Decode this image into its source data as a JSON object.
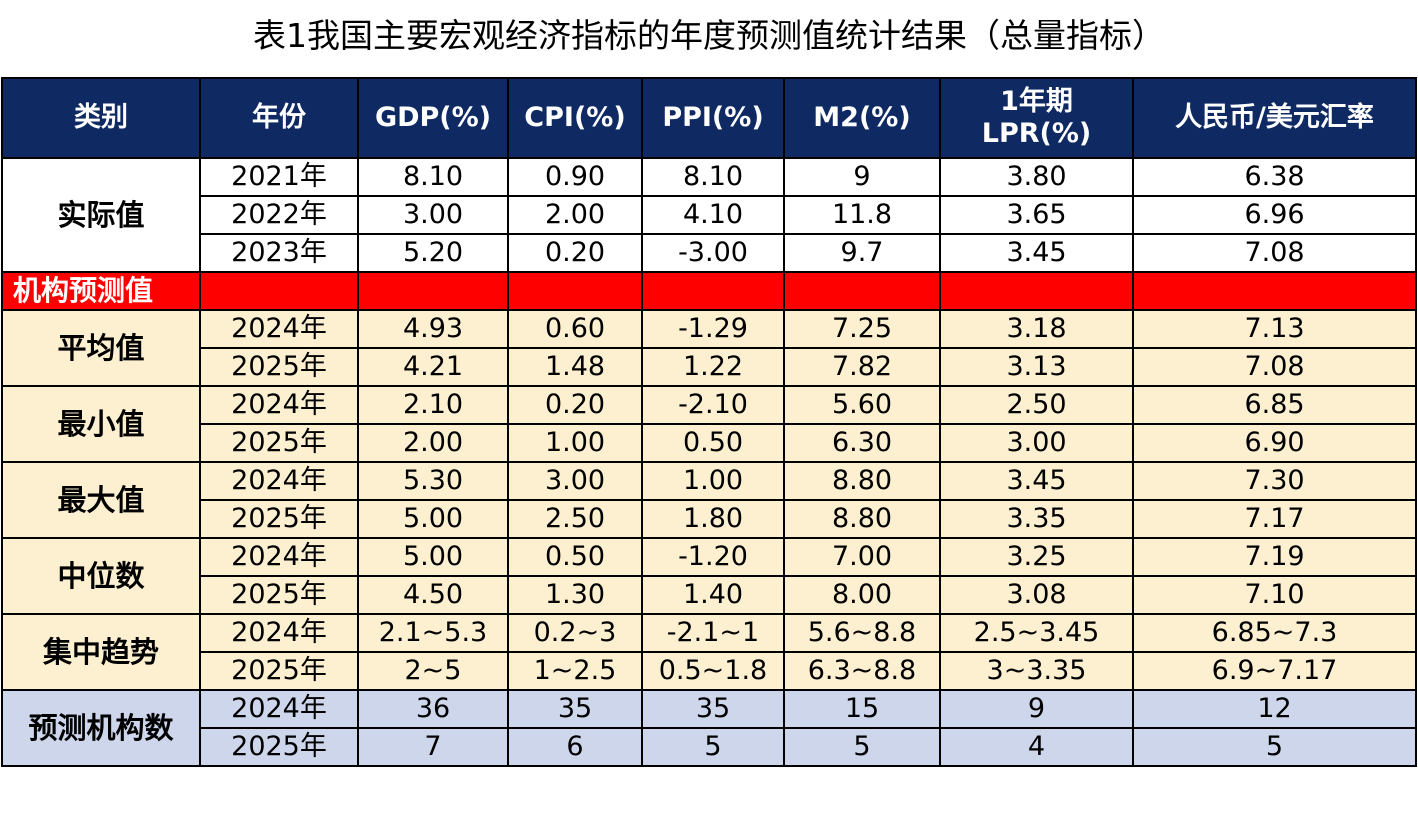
{
  "title": "表1我国主要宏观经济指标的年度预测值统计结果（总量指标）",
  "headers": [
    "类别",
    "年份",
    "GDP(%)",
    "CPI(%)",
    "PPI(%)",
    "M2(%)",
    "1年期LPR(%)",
    "人民币/美元汇率"
  ],
  "header_lpr": [
    "1年期",
    "LPR(%)"
  ],
  "actual": {
    "label": "实际值",
    "rows": [
      {
        "year": "2021年",
        "values": [
          "8.10",
          "0.90",
          "8.10",
          "9",
          "3.80",
          "6.38"
        ]
      },
      {
        "year": "2022年",
        "values": [
          "3.00",
          "2.00",
          "4.10",
          "11.8",
          "3.65",
          "6.96"
        ]
      },
      {
        "year": "2023年",
        "values": [
          "5.20",
          "0.20",
          "-3.00",
          "9.7",
          "3.45",
          "7.08"
        ]
      }
    ]
  },
  "institution_label": "机构预测值",
  "groups": [
    {
      "label": "平均值",
      "rows": [
        {
          "year": "2024年",
          "values": [
            "4.93",
            "0.60",
            "-1.29",
            "7.25",
            "3.18",
            "7.13"
          ]
        },
        {
          "year": "2025年",
          "values": [
            "4.21",
            "1.48",
            "1.22",
            "7.82",
            "3.13",
            "7.08"
          ]
        }
      ]
    },
    {
      "label": "最小值",
      "rows": [
        {
          "year": "2024年",
          "values": [
            "2.10",
            "0.20",
            "-2.10",
            "5.60",
            "2.50",
            "6.85"
          ]
        },
        {
          "year": "2025年",
          "values": [
            "2.00",
            "1.00",
            "0.50",
            "6.30",
            "3.00",
            "6.90"
          ]
        }
      ]
    },
    {
      "label": "最大值",
      "rows": [
        {
          "year": "2024年",
          "values": [
            "5.30",
            "3.00",
            "1.00",
            "8.80",
            "3.45",
            "7.30"
          ]
        },
        {
          "year": "2025年",
          "values": [
            "5.00",
            "2.50",
            "1.80",
            "8.80",
            "3.35",
            "7.17"
          ]
        }
      ]
    },
    {
      "label": "中位数",
      "rows": [
        {
          "year": "2024年",
          "values": [
            "5.00",
            "0.50",
            "-1.20",
            "7.00",
            "3.25",
            "7.19"
          ]
        },
        {
          "year": "2025年",
          "values": [
            "4.50",
            "1.30",
            "1.40",
            "8.00",
            "3.08",
            "7.10"
          ]
        }
      ]
    },
    {
      "label": "集中趋势",
      "rows": [
        {
          "year": "2024年",
          "values": [
            "2.1~5.3",
            "0.2~3",
            "-2.1~1",
            "5.6~8.8",
            "2.5~3.45",
            "6.85~7.3"
          ]
        },
        {
          "year": "2025年",
          "values": [
            "2~5",
            "1~2.5",
            "0.5~1.8",
            "6.3~8.8",
            "3~3.35",
            "6.9~7.17"
          ]
        }
      ]
    }
  ],
  "count": {
    "label": "预测机构数",
    "rows": [
      {
        "year": "2024年",
        "values": [
          "36",
          "35",
          "35",
          "15",
          "9",
          "12"
        ]
      },
      {
        "year": "2025年",
        "values": [
          "7",
          "6",
          "5",
          "5",
          "4",
          "5"
        ]
      }
    ]
  },
  "colors": {
    "header_bg": "#0f2a63",
    "institution_bg": "#ff0000",
    "forecast_bg": "#fdf0d0",
    "count_bg": "#ced6ec"
  }
}
